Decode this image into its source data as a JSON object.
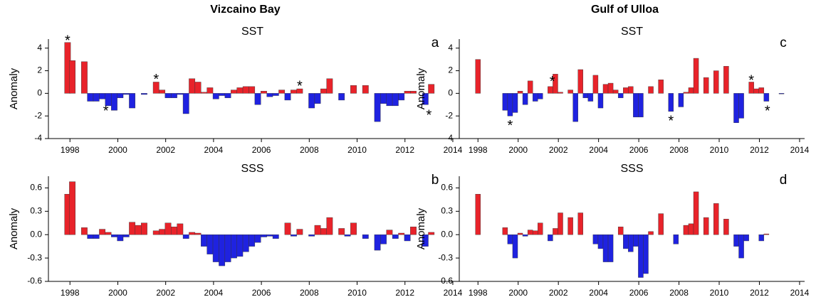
{
  "chart_data": [
    {
      "type": "bar",
      "title": "Vizcaino Bay",
      "subtitle": "SST",
      "panel_label": "a",
      "ylabel": "Anomaly",
      "colors": {
        "positive": "#e8232a",
        "negative": "#1f22e0"
      },
      "x": [
        1997.9,
        1998.1,
        1998.6,
        1998.85,
        1999.1,
        1999.35,
        1999.6,
        1999.85,
        2000.1,
        2000.35,
        2000.6,
        2001.1,
        2001.6,
        2001.85,
        2002.1,
        2002.35,
        2002.6,
        2002.85,
        2003.1,
        2003.35,
        2003.6,
        2003.85,
        2004.1,
        2004.35,
        2004.6,
        2004.85,
        2005.1,
        2005.35,
        2005.6,
        2005.85,
        2006.1,
        2006.35,
        2006.6,
        2006.85,
        2007.1,
        2007.35,
        2007.6,
        2008.1,
        2008.35,
        2008.6,
        2008.85,
        2009.35,
        2009.85,
        2010.35,
        2010.85,
        2011.1,
        2011.35,
        2011.6,
        2011.85,
        2012.1,
        2012.35,
        2012.85,
        2013.1
      ],
      "values": [
        4.5,
        2.9,
        2.8,
        -0.7,
        -0.7,
        -0.5,
        -1.1,
        -1.5,
        -0.4,
        -0.1,
        -1.3,
        -0.1,
        1.0,
        0.3,
        -0.4,
        -0.4,
        -0.1,
        -1.8,
        1.3,
        1.0,
        0.1,
        0.5,
        -0.5,
        -0.2,
        -0.4,
        0.3,
        0.5,
        0.6,
        0.6,
        -1.0,
        0.2,
        -0.3,
        -0.2,
        0.3,
        -0.6,
        0.3,
        0.4,
        -1.3,
        -0.9,
        0.4,
        1.3,
        -0.6,
        0.7,
        0.7,
        -2.5,
        -0.9,
        -1.1,
        -1.1,
        -0.6,
        0.2,
        0.2,
        -1.0,
        0.8
      ],
      "annotations": [
        {
          "text": "*",
          "x": 1997.9,
          "y": 4.9
        },
        {
          "text": "*",
          "x": 1999.5,
          "y": -1.3
        },
        {
          "text": "*",
          "x": 2001.6,
          "y": 1.5
        },
        {
          "text": "*",
          "x": 2007.6,
          "y": 0.9
        },
        {
          "text": "*",
          "x": 2013.0,
          "y": -1.7
        }
      ],
      "xlim": [
        1997.1,
        2014.15
      ],
      "xticks": [
        1998,
        2000,
        2002,
        2004,
        2006,
        2008,
        2010,
        2012,
        2014
      ],
      "ylim": [
        -4,
        4.8
      ],
      "yticks": [
        -4,
        -2,
        0,
        2,
        4
      ]
    },
    {
      "type": "bar",
      "subtitle": "SSS",
      "panel_label": "b",
      "ylabel": "Anomaly",
      "colors": {
        "positive": "#e8232a",
        "negative": "#1f22e0"
      },
      "x": [
        1997.9,
        1998.1,
        1998.6,
        1998.85,
        1999.1,
        1999.35,
        1999.6,
        1999.85,
        2000.1,
        2000.35,
        2000.6,
        2000.85,
        2001.1,
        2001.6,
        2001.85,
        2002.1,
        2002.35,
        2002.6,
        2002.85,
        2003.1,
        2003.35,
        2003.6,
        2003.85,
        2004.1,
        2004.35,
        2004.6,
        2004.85,
        2005.1,
        2005.35,
        2005.6,
        2005.85,
        2006.1,
        2006.35,
        2006.6,
        2007.1,
        2007.35,
        2007.6,
        2008.1,
        2008.35,
        2008.6,
        2008.85,
        2009.35,
        2009.6,
        2009.85,
        2010.35,
        2010.85,
        2011.1,
        2011.35,
        2011.6,
        2011.85,
        2012.1,
        2012.35,
        2012.85,
        2013.1
      ],
      "values": [
        0.52,
        0.68,
        0.09,
        -0.05,
        -0.05,
        0.07,
        0.03,
        -0.03,
        -0.08,
        -0.03,
        0.16,
        0.12,
        0.15,
        0.05,
        0.07,
        0.15,
        0.1,
        0.14,
        -0.05,
        0.03,
        0.02,
        -0.15,
        -0.25,
        -0.35,
        -0.4,
        -0.35,
        -0.3,
        -0.28,
        -0.22,
        -0.15,
        -0.1,
        -0.03,
        -0.02,
        -0.05,
        0.15,
        -0.02,
        0.07,
        -0.02,
        0.12,
        0.08,
        0.22,
        0.08,
        -0.02,
        0.15,
        -0.05,
        -0.2,
        -0.12,
        0.06,
        -0.05,
        0.02,
        -0.08,
        0.1,
        -0.15,
        0.03
      ],
      "xlim": [
        1997.1,
        2014.15
      ],
      "xticks": [
        1998,
        2000,
        2002,
        2004,
        2006,
        2008,
        2010,
        2012,
        2014
      ],
      "ylim": [
        -0.6,
        0.75
      ],
      "yticks": [
        -0.6,
        -0.3,
        {
          "value": 0,
          "label": "0.0"
        },
        0.3,
        0.6
      ]
    },
    {
      "type": "bar",
      "title": "Gulf of Ulloa",
      "subtitle": "SST",
      "panel_label": "c",
      "ylabel": "Anomaly",
      "colors": {
        "positive": "#e8232a",
        "negative": "#1f22e0"
      },
      "x": [
        1998.0,
        1999.35,
        1999.6,
        1999.85,
        2000.1,
        2000.35,
        2000.6,
        2000.85,
        2001.1,
        2001.6,
        2001.85,
        2002.1,
        2002.6,
        2002.85,
        2003.1,
        2003.35,
        2003.6,
        2003.85,
        2004.1,
        2004.35,
        2004.6,
        2004.85,
        2005.1,
        2005.35,
        2005.6,
        2005.85,
        2006.1,
        2006.6,
        2007.1,
        2007.6,
        2008.1,
        2008.35,
        2008.6,
        2008.85,
        2009.35,
        2009.85,
        2010.35,
        2010.85,
        2011.1,
        2011.6,
        2011.85,
        2012.1,
        2012.35,
        2013.1
      ],
      "values": [
        3.0,
        -1.5,
        -2.0,
        -1.7,
        0.2,
        -1.0,
        1.1,
        -0.7,
        -0.5,
        0.6,
        1.7,
        0.1,
        0.3,
        -2.5,
        2.1,
        -0.4,
        -0.7,
        1.6,
        -1.3,
        0.8,
        0.9,
        0.3,
        -0.4,
        0.5,
        0.6,
        -2.1,
        -2.1,
        0.6,
        1.2,
        -1.6,
        -1.2,
        0.1,
        0.5,
        3.1,
        1.4,
        2.0,
        2.4,
        -2.6,
        -2.2,
        1.0,
        0.4,
        0.5,
        -0.7,
        -0.05
      ],
      "annotations": [
        {
          "text": "*",
          "x": 1999.6,
          "y": -2.6
        },
        {
          "text": "*",
          "x": 2001.7,
          "y": 1.3
        },
        {
          "text": "*",
          "x": 2007.6,
          "y": -2.2
        },
        {
          "text": "*",
          "x": 2011.6,
          "y": 1.4
        },
        {
          "text": "*",
          "x": 2012.4,
          "y": -1.3
        }
      ],
      "xlim": [
        1997.07,
        2014.25
      ],
      "xticks": [
        1998,
        2000,
        2002,
        2004,
        2006,
        2008,
        2010,
        2012,
        2014
      ],
      "ylim": [
        -4,
        4.8
      ],
      "yticks": [
        -4,
        -2,
        0,
        2,
        4
      ]
    },
    {
      "type": "bar",
      "subtitle": "SSS",
      "panel_label": "d",
      "ylabel": "Anomaly",
      "colors": {
        "positive": "#e8232a",
        "negative": "#1f22e0"
      },
      "x": [
        1998.0,
        1999.35,
        1999.6,
        1999.85,
        2000.1,
        2000.35,
        2000.6,
        2000.85,
        2001.1,
        2001.6,
        2001.85,
        2002.1,
        2002.6,
        2003.1,
        2003.85,
        2004.1,
        2004.35,
        2004.6,
        2005.1,
        2005.35,
        2005.6,
        2005.85,
        2006.1,
        2006.35,
        2006.6,
        2007.1,
        2007.85,
        2008.35,
        2008.6,
        2008.85,
        2009.35,
        2009.85,
        2010.35,
        2010.85,
        2011.1,
        2011.35,
        2012.1,
        2012.35
      ],
      "values": [
        0.52,
        0.09,
        -0.12,
        -0.3,
        0.02,
        -0.02,
        0.06,
        0.05,
        0.15,
        -0.08,
        0.08,
        0.28,
        0.22,
        0.28,
        -0.12,
        -0.18,
        -0.35,
        -0.35,
        0.1,
        -0.18,
        -0.22,
        -0.15,
        -0.55,
        -0.5,
        0.04,
        0.27,
        -0.12,
        0.12,
        0.14,
        0.55,
        0.22,
        0.4,
        0.2,
        -0.15,
        -0.3,
        -0.08,
        -0.08,
        0.01
      ],
      "xlim": [
        1997.07,
        2014.25
      ],
      "xticks": [
        1998,
        2000,
        2002,
        2004,
        2006,
        2008,
        2010,
        2012,
        2014
      ],
      "ylim": [
        -0.6,
        0.75
      ],
      "yticks": [
        -0.6,
        -0.3,
        {
          "value": 0,
          "label": "0.0"
        },
        0.3,
        0.6
      ]
    }
  ]
}
